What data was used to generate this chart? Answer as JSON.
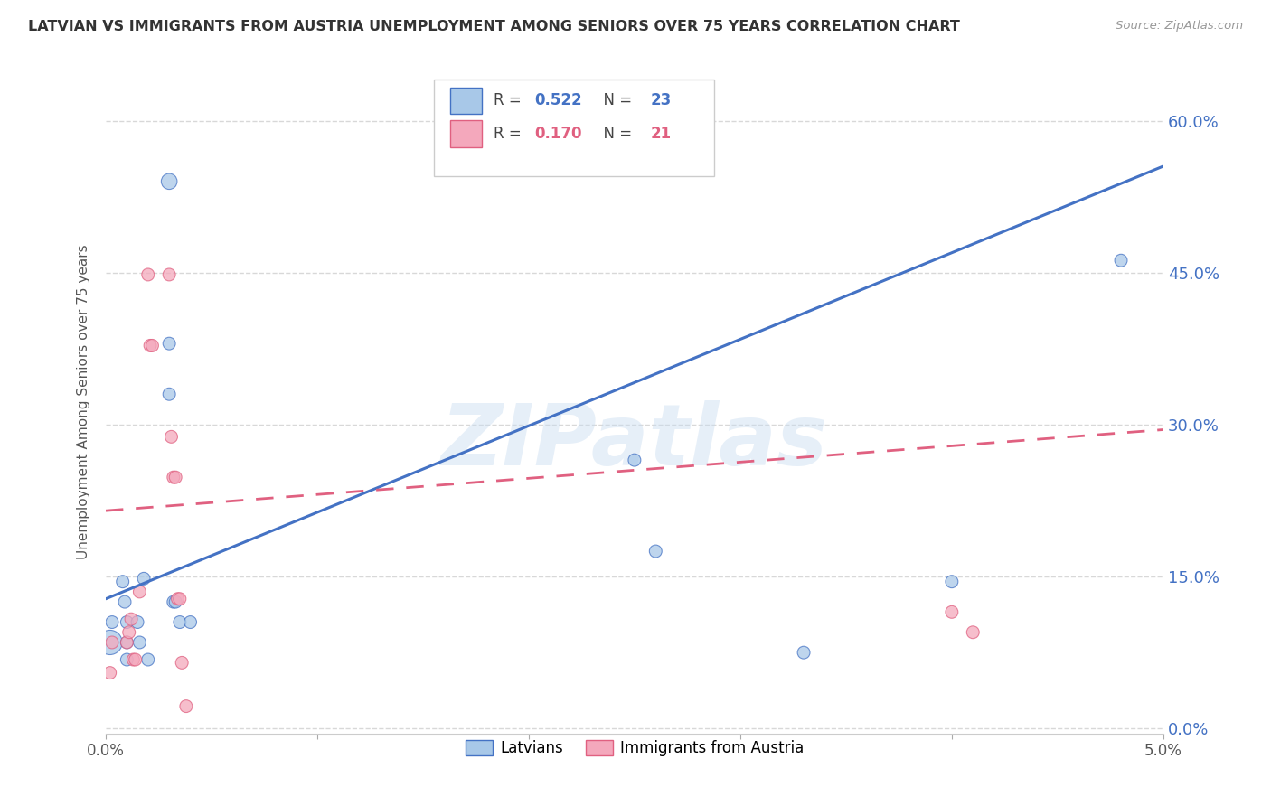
{
  "title": "LATVIAN VS IMMIGRANTS FROM AUSTRIA UNEMPLOYMENT AMONG SENIORS OVER 75 YEARS CORRELATION CHART",
  "source": "Source: ZipAtlas.com",
  "ylabel": "Unemployment Among Seniors over 75 years",
  "xlim": [
    0.0,
    0.05
  ],
  "ylim": [
    -0.005,
    0.65
  ],
  "xticks": [
    0.0,
    0.01,
    0.02,
    0.03,
    0.04,
    0.05
  ],
  "xtick_labels": [
    "0.0%",
    "",
    "",
    "",
    "",
    "5.0%"
  ],
  "yticks_right": [
    0.0,
    0.15,
    0.3,
    0.45,
    0.6
  ],
  "latvian_R": 0.522,
  "latvian_N": 23,
  "austria_R": 0.17,
  "austria_N": 21,
  "latvian_color": "#A8C8E8",
  "austria_color": "#F4A8BC",
  "latvian_line_color": "#4472C4",
  "austria_line_color": "#E06080",
  "background_color": "#FFFFFF",
  "grid_color": "#D8D8D8",
  "watermark": "ZIPatlas",
  "latvian_points": [
    [
      0.0002,
      0.085
    ],
    [
      0.0003,
      0.105
    ],
    [
      0.0008,
      0.145
    ],
    [
      0.0009,
      0.125
    ],
    [
      0.001,
      0.105
    ],
    [
      0.001,
      0.085
    ],
    [
      0.001,
      0.068
    ],
    [
      0.0015,
      0.105
    ],
    [
      0.0016,
      0.085
    ],
    [
      0.0018,
      0.148
    ],
    [
      0.002,
      0.068
    ],
    [
      0.003,
      0.54
    ],
    [
      0.003,
      0.38
    ],
    [
      0.003,
      0.33
    ],
    [
      0.0032,
      0.125
    ],
    [
      0.0033,
      0.125
    ],
    [
      0.0035,
      0.105
    ],
    [
      0.004,
      0.105
    ],
    [
      0.025,
      0.265
    ],
    [
      0.026,
      0.175
    ],
    [
      0.033,
      0.075
    ],
    [
      0.04,
      0.145
    ],
    [
      0.048,
      0.462
    ]
  ],
  "latvian_sizes": [
    380,
    100,
    100,
    100,
    100,
    100,
    100,
    100,
    100,
    100,
    100,
    160,
    100,
    100,
    100,
    100,
    100,
    100,
    100,
    100,
    100,
    100,
    100
  ],
  "austria_points": [
    [
      0.0002,
      0.055
    ],
    [
      0.0003,
      0.085
    ],
    [
      0.001,
      0.085
    ],
    [
      0.0011,
      0.095
    ],
    [
      0.0012,
      0.108
    ],
    [
      0.0013,
      0.068
    ],
    [
      0.0014,
      0.068
    ],
    [
      0.0016,
      0.135
    ],
    [
      0.002,
      0.448
    ],
    [
      0.0021,
      0.378
    ],
    [
      0.0022,
      0.378
    ],
    [
      0.003,
      0.448
    ],
    [
      0.0031,
      0.288
    ],
    [
      0.0032,
      0.248
    ],
    [
      0.0033,
      0.248
    ],
    [
      0.0034,
      0.128
    ],
    [
      0.0035,
      0.128
    ],
    [
      0.0036,
      0.065
    ],
    [
      0.0038,
      0.022
    ],
    [
      0.04,
      0.115
    ],
    [
      0.041,
      0.095
    ]
  ],
  "austria_sizes": [
    100,
    100,
    100,
    100,
    100,
    100,
    100,
    100,
    100,
    100,
    100,
    100,
    100,
    100,
    100,
    100,
    100,
    100,
    100,
    100,
    100
  ],
  "latvian_line": [
    0.0,
    0.128,
    0.05,
    0.555
  ],
  "austria_line": [
    0.0,
    0.215,
    0.05,
    0.295
  ]
}
